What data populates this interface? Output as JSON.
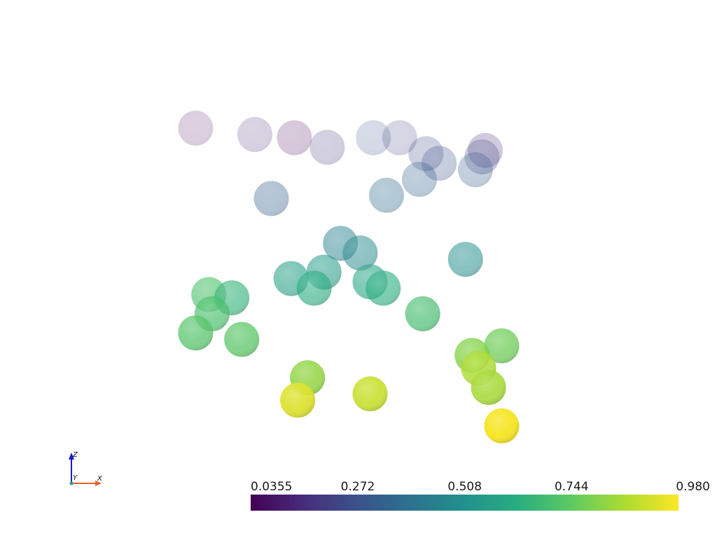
{
  "chart_data": {
    "type": "scatter",
    "title": "",
    "colormap": "viridis",
    "colorbar": {
      "min": 0.0355,
      "max": 0.98,
      "tick_labels": [
        "0.0355",
        "0.272",
        "0.508",
        "0.744",
        "0.980"
      ],
      "tick_values": [
        0.0355,
        0.272,
        0.508,
        0.744,
        0.98
      ],
      "placement": "bottom"
    },
    "orientation_axes": {
      "labels": [
        "Z",
        "Y",
        "X"
      ],
      "colors": {
        "X": "#e8642a",
        "Y": "#2a9d8f",
        "Z": "#1a1acd"
      }
    },
    "points": [
      {
        "x": 0.02,
        "y": 0.05,
        "value": 0.03
      },
      {
        "x": 0.2,
        "y": 0.07,
        "value": 0.13
      },
      {
        "x": 0.32,
        "y": 0.08,
        "value": 0.04
      },
      {
        "x": 0.56,
        "y": 0.08,
        "value": 0.29
      },
      {
        "x": 0.64,
        "y": 0.08,
        "value": 0.21
      },
      {
        "x": 0.42,
        "y": 0.11,
        "value": 0.18
      },
      {
        "x": 0.9,
        "y": 0.12,
        "value": 0.14
      },
      {
        "x": 0.72,
        "y": 0.13,
        "value": 0.24
      },
      {
        "x": 0.89,
        "y": 0.14,
        "value": 0.23
      },
      {
        "x": 0.76,
        "y": 0.16,
        "value": 0.28
      },
      {
        "x": 0.87,
        "y": 0.18,
        "value": 0.31
      },
      {
        "x": 0.7,
        "y": 0.21,
        "value": 0.33
      },
      {
        "x": 0.25,
        "y": 0.27,
        "value": 0.33
      },
      {
        "x": 0.6,
        "y": 0.26,
        "value": 0.37
      },
      {
        "x": 0.46,
        "y": 0.41,
        "value": 0.44
      },
      {
        "x": 0.52,
        "y": 0.44,
        "value": 0.48
      },
      {
        "x": 0.84,
        "y": 0.46,
        "value": 0.5
      },
      {
        "x": 0.41,
        "y": 0.5,
        "value": 0.55
      },
      {
        "x": 0.31,
        "y": 0.52,
        "value": 0.57
      },
      {
        "x": 0.55,
        "y": 0.53,
        "value": 0.59
      },
      {
        "x": 0.38,
        "y": 0.55,
        "value": 0.62
      },
      {
        "x": 0.59,
        "y": 0.55,
        "value": 0.63
      },
      {
        "x": 0.13,
        "y": 0.58,
        "value": 0.65
      },
      {
        "x": 0.71,
        "y": 0.63,
        "value": 0.69
      },
      {
        "x": 0.07,
        "y": 0.63,
        "value": 0.7
      },
      {
        "x": 0.06,
        "y": 0.57,
        "value": 0.71
      },
      {
        "x": 0.02,
        "y": 0.69,
        "value": 0.72
      },
      {
        "x": 0.16,
        "y": 0.71,
        "value": 0.73
      },
      {
        "x": 0.95,
        "y": 0.73,
        "value": 0.77
      },
      {
        "x": 0.86,
        "y": 0.76,
        "value": 0.8
      },
      {
        "x": 0.36,
        "y": 0.83,
        "value": 0.82
      },
      {
        "x": 0.91,
        "y": 0.86,
        "value": 0.85
      },
      {
        "x": 0.88,
        "y": 0.8,
        "value": 0.86
      },
      {
        "x": 0.55,
        "y": 0.88,
        "value": 0.9
      },
      {
        "x": 0.33,
        "y": 0.9,
        "value": 0.93
      },
      {
        "x": 0.95,
        "y": 0.98,
        "value": 0.97
      }
    ]
  }
}
